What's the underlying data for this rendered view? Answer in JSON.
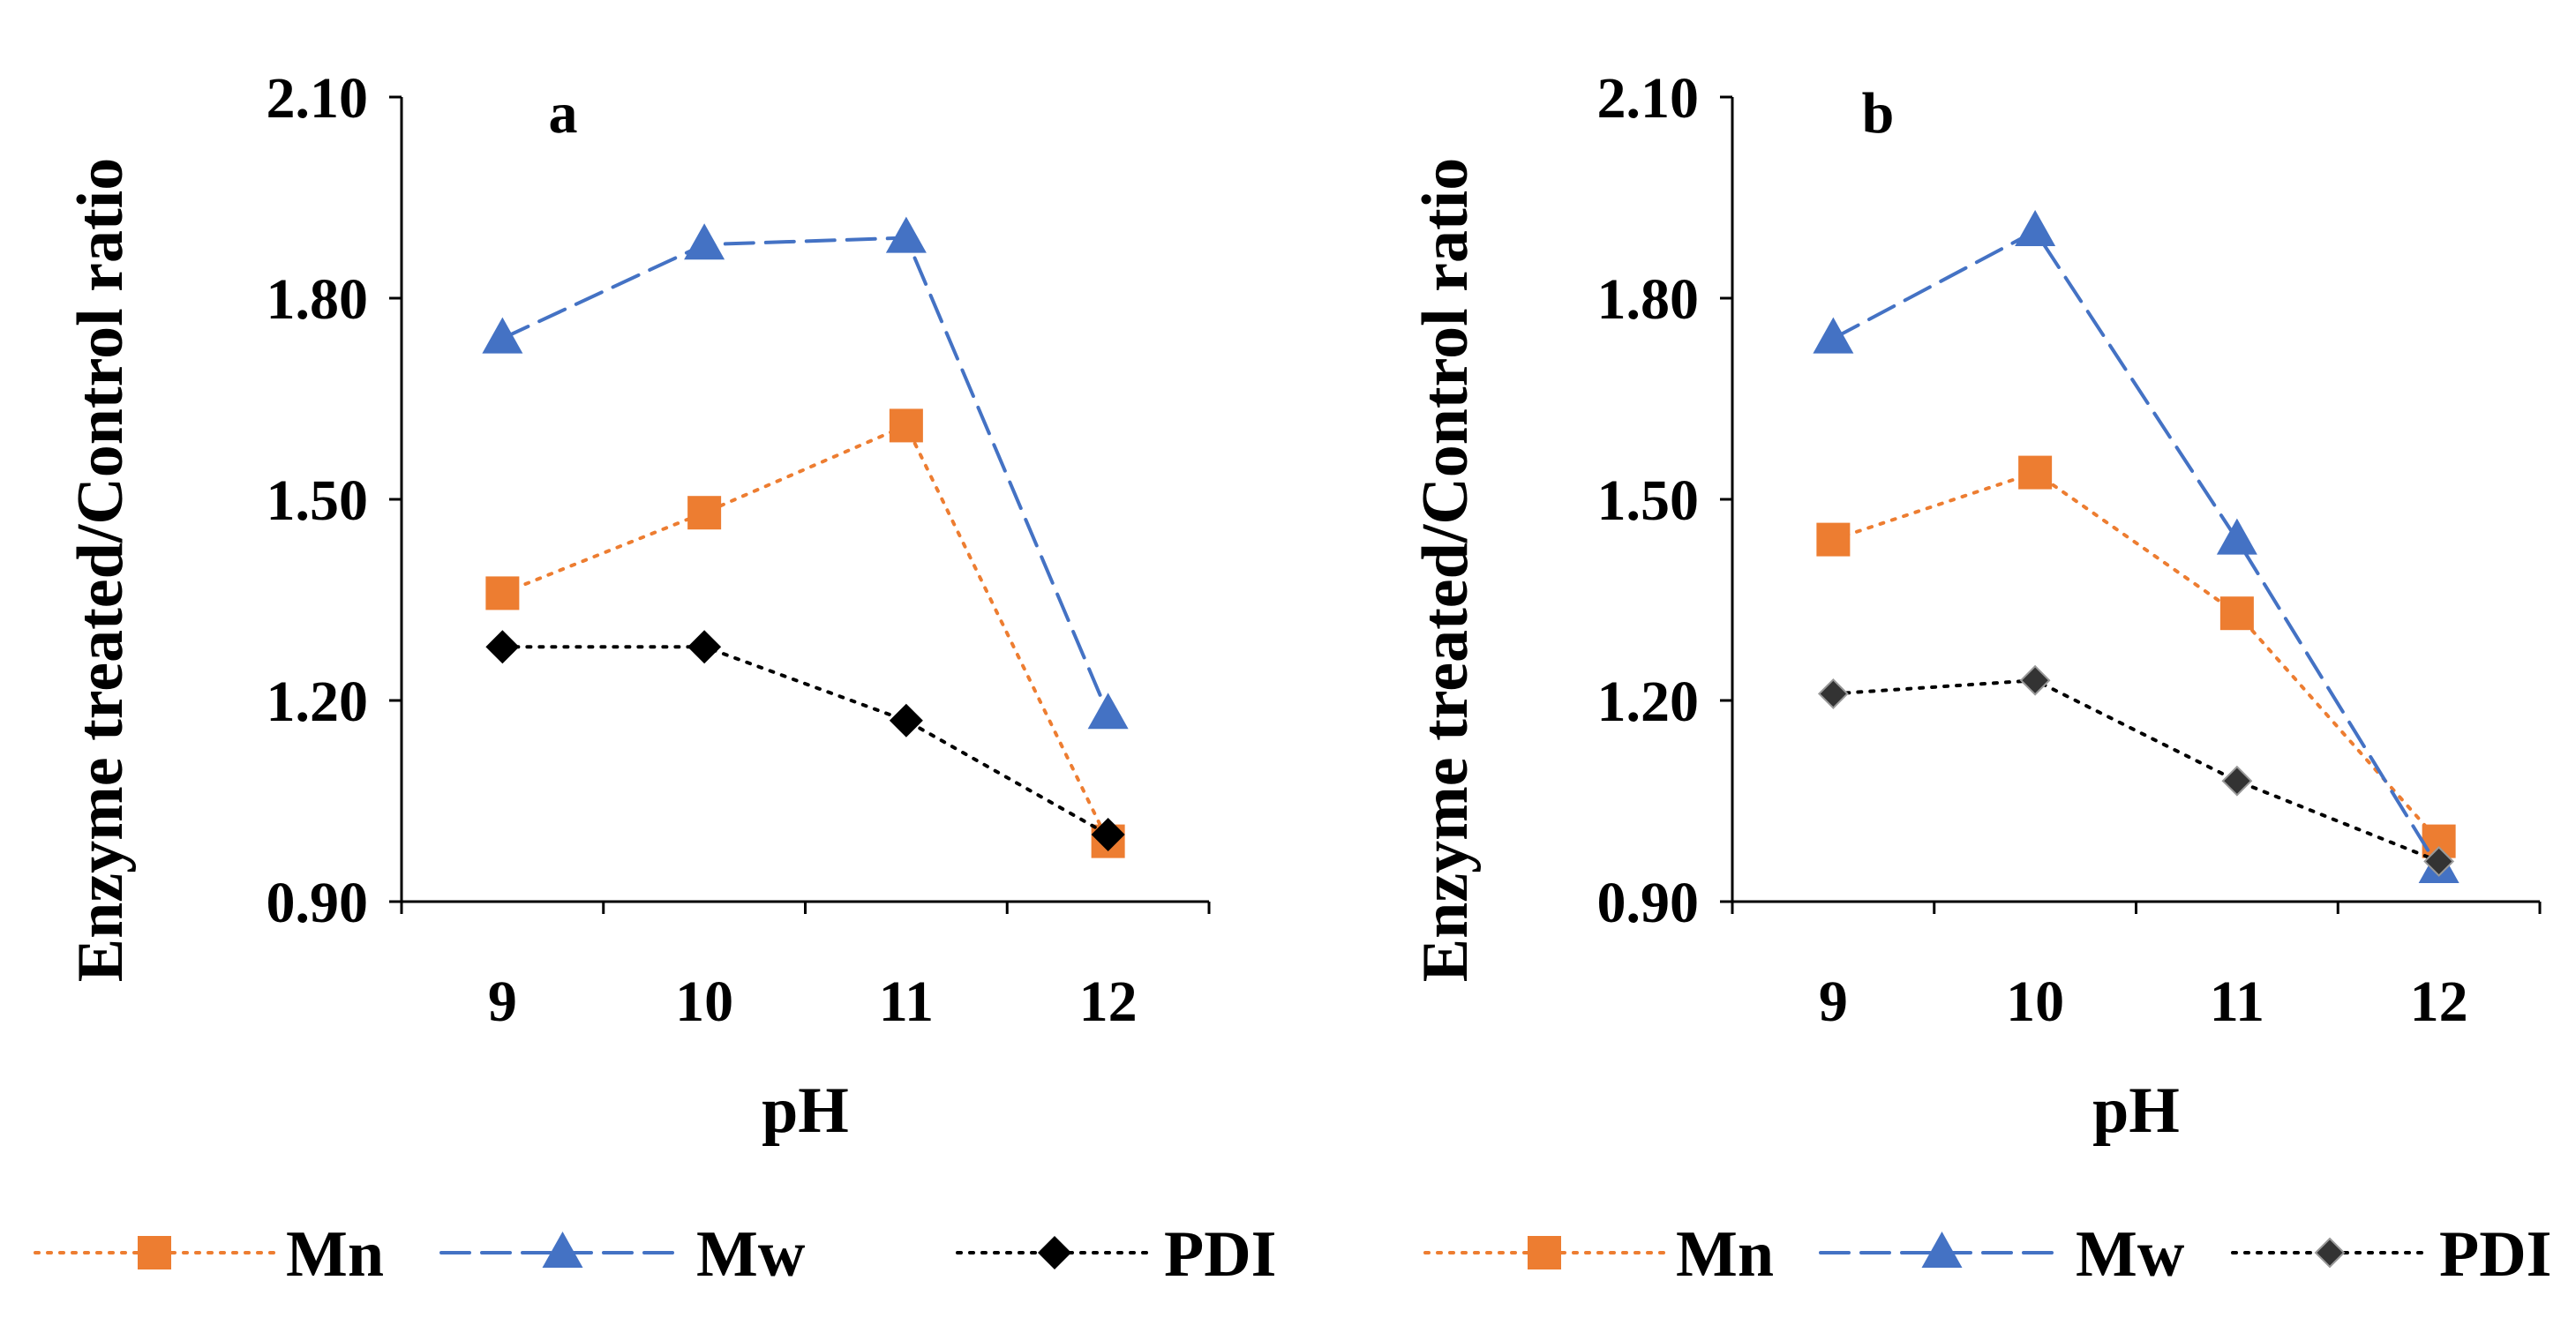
{
  "chart_data": [
    {
      "type": "line",
      "panel_label": "a",
      "xlabel": "pH",
      "ylabel": "Enzyme treated/Control ratio",
      "categories": [
        "9",
        "10",
        "11",
        "12"
      ],
      "y_tick_labels": [
        "0.90",
        "1.20",
        "1.50",
        "1.80",
        "2.10"
      ],
      "ylim": [
        0.9,
        2.1
      ],
      "grid": false,
      "legend_position": "bottom",
      "series": [
        {
          "name": "Mn",
          "marker": "square",
          "line": "dotted",
          "color": "#ED7D31",
          "values": [
            1.36,
            1.48,
            1.61,
            0.99
          ]
        },
        {
          "name": "Mw",
          "marker": "triangle",
          "line": "dashed",
          "color": "#4472C4",
          "values": [
            1.74,
            1.88,
            1.89,
            1.18
          ]
        },
        {
          "name": "PDI",
          "marker": "diamond",
          "line": "dotted",
          "color": "#000000",
          "values": [
            1.28,
            1.28,
            1.17,
            1.0
          ]
        }
      ]
    },
    {
      "type": "line",
      "panel_label": "b",
      "xlabel": "pH",
      "ylabel": "Enzyme treated/Control ratio",
      "categories": [
        "9",
        "10",
        "11",
        "12"
      ],
      "y_tick_labels": [
        "0.90",
        "1.20",
        "1.50",
        "1.80",
        "2.10"
      ],
      "ylim": [
        0.9,
        2.1
      ],
      "grid": false,
      "legend_position": "bottom",
      "series": [
        {
          "name": "Mn",
          "marker": "square",
          "line": "dotted",
          "color": "#ED7D31",
          "values": [
            1.44,
            1.54,
            1.33,
            0.99
          ]
        },
        {
          "name": "Mw",
          "marker": "triangle",
          "line": "dashed",
          "color": "#4472C4",
          "values": [
            1.74,
            1.9,
            1.44,
            0.95
          ]
        },
        {
          "name": "PDI",
          "marker": "diamond-small",
          "line": "dotted",
          "color": "#000000",
          "values": [
            1.21,
            1.23,
            1.08,
            0.96
          ]
        }
      ]
    }
  ]
}
